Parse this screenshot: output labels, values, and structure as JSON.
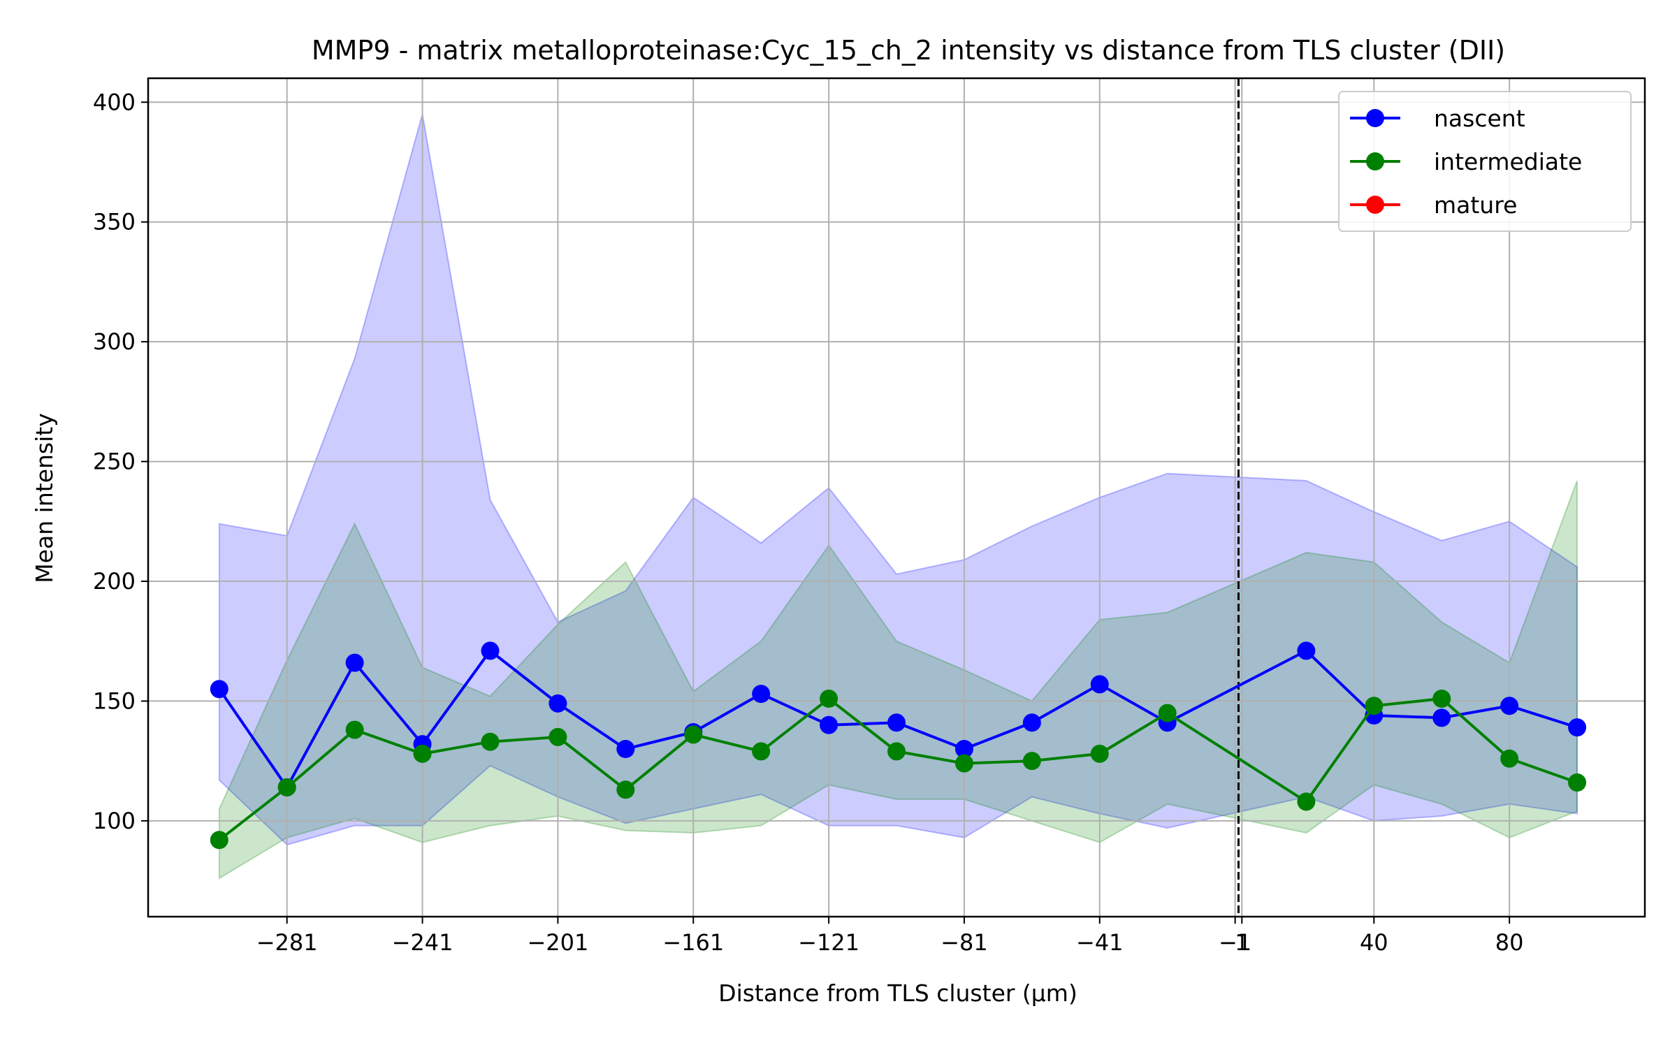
{
  "chart_data": {
    "type": "line",
    "title": "MMP9 - matrix metalloproteinase:Cyc_15_ch_2 intensity vs distance from TLS cluster (DII)",
    "xlabel": "Distance from TLS cluster (μm)",
    "ylabel": "Mean intensity",
    "xlim": [
      -322,
      120
    ],
    "ylim": [
      60,
      410
    ],
    "x_ticks": [
      -281,
      -241,
      -201,
      -161,
      -121,
      -81,
      -41,
      -1,
      1,
      40,
      80
    ],
    "x_tick_labels": [
      "−281",
      "−241",
      "−201",
      "−161",
      "−121",
      "−81",
      "−41",
      "−1",
      "1",
      "40",
      "80"
    ],
    "y_ticks": [
      100,
      150,
      200,
      250,
      300,
      350,
      400
    ],
    "y_tick_labels": [
      "100",
      "150",
      "200",
      "250",
      "300",
      "350",
      "400"
    ],
    "grid": true,
    "legend_position": "top-right",
    "reference_line_x": 0,
    "series": [
      {
        "name": "nascent",
        "color": "#0000ff",
        "band_color": "rgba(0,0,255,0.2)",
        "x": [
          -301,
          -281,
          -261,
          -241,
          -221,
          -201,
          -181,
          -161,
          -141,
          -121,
          -101,
          -81,
          -61,
          -41,
          -21,
          20,
          40,
          60,
          80,
          100
        ],
        "values": [
          155,
          114,
          166,
          132,
          171,
          149,
          130,
          137,
          153,
          140,
          141,
          130,
          141,
          157,
          141,
          171,
          144,
          143,
          148,
          139
        ],
        "upper": [
          224,
          219,
          293,
          395,
          234,
          183,
          196,
          235,
          216,
          239,
          203,
          209,
          223,
          235,
          245,
          242,
          229,
          217,
          225,
          206
        ],
        "lower": [
          117,
          90,
          98,
          98,
          123,
          110,
          99,
          105,
          111,
          98,
          98,
          93,
          110,
          103,
          97,
          110,
          100,
          102,
          107,
          103
        ]
      },
      {
        "name": "intermediate",
        "color": "#008000",
        "band_color": "rgba(0,128,0,0.2)",
        "x": [
          -301,
          -281,
          -261,
          -241,
          -221,
          -201,
          -181,
          -161,
          -141,
          -121,
          -101,
          -81,
          -61,
          -41,
          -21,
          20,
          40,
          60,
          80,
          100
        ],
        "values": [
          92,
          114,
          138,
          128,
          133,
          135,
          113,
          136,
          129,
          151,
          129,
          124,
          125,
          128,
          145,
          108,
          148,
          151,
          126,
          116
        ],
        "upper": [
          105,
          167,
          224,
          164,
          152,
          182,
          208,
          154,
          175,
          215,
          175,
          163,
          150,
          184,
          187,
          212,
          208,
          183,
          166,
          242
        ],
        "lower": [
          76,
          93,
          101,
          91,
          98,
          102,
          96,
          95,
          98,
          115,
          109,
          109,
          100,
          91,
          107,
          95,
          115,
          107,
          93,
          104
        ]
      },
      {
        "name": "mature",
        "color": "#ff0000",
        "x": [],
        "values": []
      }
    ]
  }
}
